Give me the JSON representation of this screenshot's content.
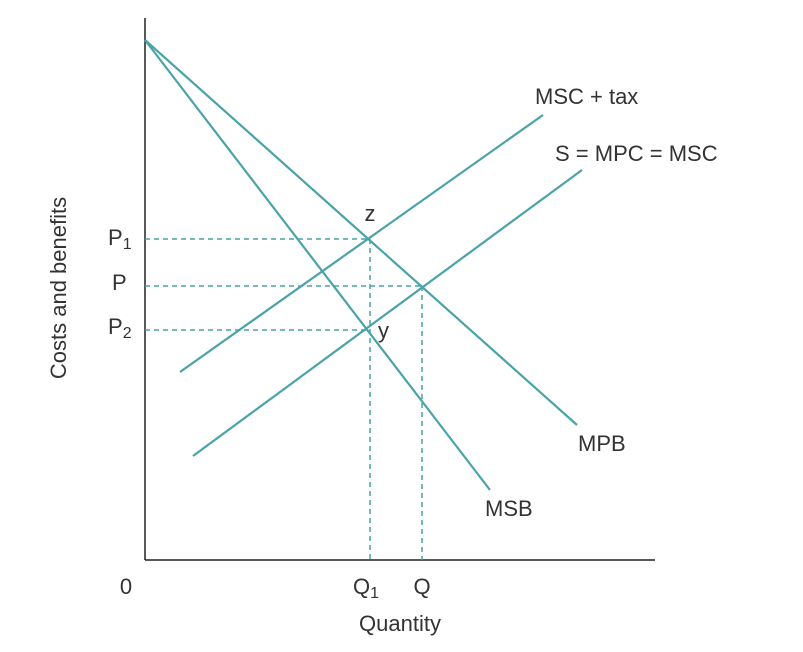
{
  "diagram": {
    "y_axis_label": "Costs and benefits",
    "x_axis_label": "Quantity",
    "origin": "0",
    "price_labels": [
      {
        "text": "P",
        "sub": "1"
      },
      {
        "text": "P"
      },
      {
        "text": "P",
        "sub": "2"
      }
    ],
    "quantity_labels": [
      {
        "text": "Q",
        "sub": "1"
      },
      {
        "text": "Q"
      }
    ],
    "curves": [
      "MSC + tax",
      "S = MPC = MSC",
      "MPB",
      "MSB"
    ],
    "points": [
      "z",
      "y"
    ]
  }
}
